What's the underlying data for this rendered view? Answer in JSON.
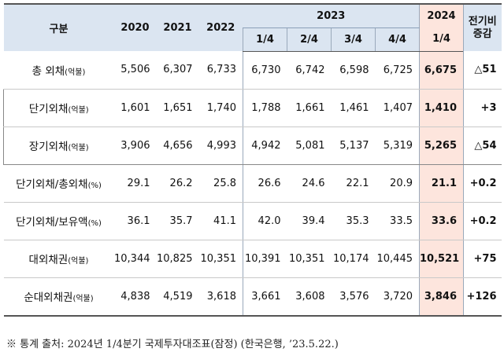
{
  "header": {
    "category": "구분",
    "years": [
      "2020",
      "2021",
      "2022"
    ],
    "year_2023": "2023",
    "year_2024": "2024",
    "change_line1": "전기비",
    "change_line2": "증감",
    "quarters_2023": [
      "1/4",
      "2/4",
      "3/4",
      "4/4"
    ],
    "quarter_2024": "1/4"
  },
  "rows": [
    {
      "label": "총 외채",
      "unit": "(억불)",
      "values": [
        "5,506",
        "6,307",
        "6,733",
        "6,730",
        "6,742",
        "6,598",
        "6,725",
        "6,675"
      ],
      "change": "△51"
    },
    {
      "label": "단기외채",
      "unit": "(억불)",
      "values": [
        "1,601",
        "1,651",
        "1,740",
        "1,788",
        "1,661",
        "1,461",
        "1,407",
        "1,410"
      ],
      "change": "+3"
    },
    {
      "label": "장기외채",
      "unit": "(억불)",
      "values": [
        "3,906",
        "4,656",
        "4,993",
        "4,942",
        "5,081",
        "5,137",
        "5,319",
        "5,265"
      ],
      "change": "△54"
    },
    {
      "label": "단기외채/총외채",
      "unit": "(%)",
      "values": [
        "29.1",
        "26.2",
        "25.8",
        "26.6",
        "24.6",
        "22.1",
        "20.9",
        "21.1"
      ],
      "change": "+0.2"
    },
    {
      "label": "단기외채/보유액",
      "unit": "(%)",
      "values": [
        "36.1",
        "35.7",
        "41.1",
        "42.0",
        "39.4",
        "35.3",
        "33.5",
        "33.6"
      ],
      "change": "+0.2"
    },
    {
      "label": "대외채권",
      "unit": "(억불)",
      "values": [
        "10,344",
        "10,825",
        "10,351",
        "10,391",
        "10,351",
        "10,174",
        "10,445",
        "10,521"
      ],
      "change": "+75"
    },
    {
      "label": "순대외채권",
      "unit": "(억불)",
      "values": [
        "4,838",
        "4,519",
        "3,618",
        "3,661",
        "3,608",
        "3,576",
        "3,720",
        "3,846"
      ],
      "change": "+126"
    }
  ],
  "footnote": "※ 통계 출처: 2024년 1/4분기 국제투자대조표(잠정) (한국은행, ’23.5.22.)"
}
